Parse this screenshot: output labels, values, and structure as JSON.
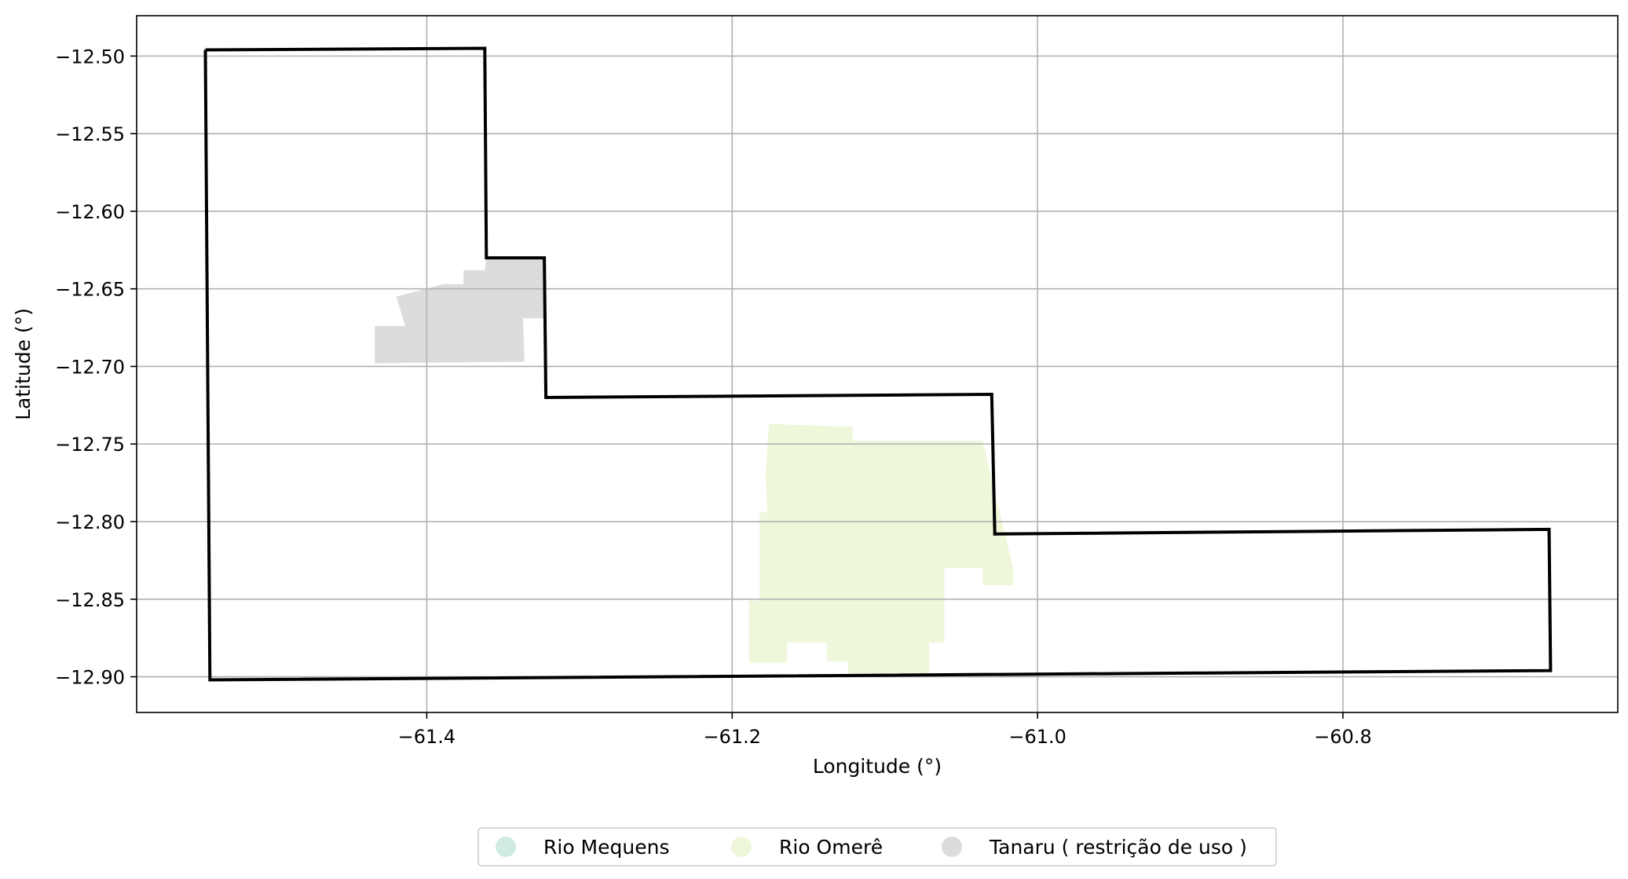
{
  "chart_data": {
    "type": "map",
    "xlabel": "Longitude (°)",
    "ylabel": "Latitude (°)",
    "xlim": [
      -61.59,
      -60.62
    ],
    "ylim": [
      -12.923,
      -12.474
    ],
    "grid": true,
    "x_ticks": [
      -61.4,
      -61.2,
      -61.0,
      -60.8
    ],
    "x_tick_labels": [
      "−61.4",
      "−61.2",
      "−61.0",
      "−60.8"
    ],
    "y_ticks": [
      -12.5,
      -12.55,
      -12.6,
      -12.65,
      -12.7,
      -12.75,
      -12.8,
      -12.85,
      -12.9
    ],
    "y_tick_labels": [
      "−12.50",
      "−12.55",
      "−12.60",
      "−12.65",
      "−12.70",
      "−12.75",
      "−12.80",
      "−12.85",
      "−12.90"
    ],
    "legend_position": "bottom-center",
    "boundary": {
      "stroke": "#000000",
      "coords": [
        [
          -61.545,
          -12.496
        ],
        [
          -61.362,
          -12.495
        ],
        [
          -61.361,
          -12.63
        ],
        [
          -61.323,
          -12.63
        ],
        [
          -61.322,
          -12.72
        ],
        [
          -61.03,
          -12.718
        ],
        [
          -61.028,
          -12.808
        ],
        [
          -60.665,
          -12.805
        ],
        [
          -60.664,
          -12.896
        ],
        [
          -61.542,
          -12.902
        ],
        [
          -61.545,
          -12.496
        ]
      ]
    },
    "areas": [
      {
        "name": "Rio Mequens",
        "color": "#d0ebe0",
        "polygons": []
      },
      {
        "name": "Rio Omerê",
        "color": "#eef7da",
        "polygons": [
          [
            [
              -61.176,
              -12.737
            ],
            [
              -61.121,
              -12.739
            ],
            [
              -61.121,
              -12.748
            ],
            [
              -61.036,
              -12.748
            ],
            [
              -61.016,
              -12.83
            ],
            [
              -61.016,
              -12.841
            ],
            [
              -61.036,
              -12.841
            ],
            [
              -61.036,
              -12.83
            ],
            [
              -61.061,
              -12.83
            ],
            [
              -61.061,
              -12.878
            ],
            [
              -61.071,
              -12.878
            ],
            [
              -61.071,
              -12.898
            ],
            [
              -61.124,
              -12.898
            ],
            [
              -61.124,
              -12.89
            ],
            [
              -61.138,
              -12.89
            ],
            [
              -61.138,
              -12.878
            ],
            [
              -61.164,
              -12.878
            ],
            [
              -61.164,
              -12.891
            ],
            [
              -61.189,
              -12.891
            ],
            [
              -61.189,
              -12.851
            ],
            [
              -61.182,
              -12.851
            ],
            [
              -61.182,
              -12.794
            ],
            [
              -61.177,
              -12.794
            ],
            [
              -61.178,
              -12.77
            ]
          ]
        ]
      },
      {
        "name": "Tanaru ( restrição de uso )",
        "color": "#dcdcdc",
        "polygons": [
          [
            [
              -61.376,
              -12.638
            ],
            [
              -61.362,
              -12.638
            ],
            [
              -61.361,
              -12.63
            ],
            [
              -61.323,
              -12.63
            ],
            [
              -61.323,
              -12.669
            ],
            [
              -61.337,
              -12.669
            ],
            [
              -61.336,
              -12.697
            ],
            [
              -61.434,
              -12.698
            ],
            [
              -61.434,
              -12.674
            ],
            [
              -61.414,
              -12.674
            ],
            [
              -61.42,
              -12.655
            ],
            [
              -61.389,
              -12.647
            ],
            [
              -61.376,
              -12.647
            ]
          ]
        ]
      }
    ]
  }
}
